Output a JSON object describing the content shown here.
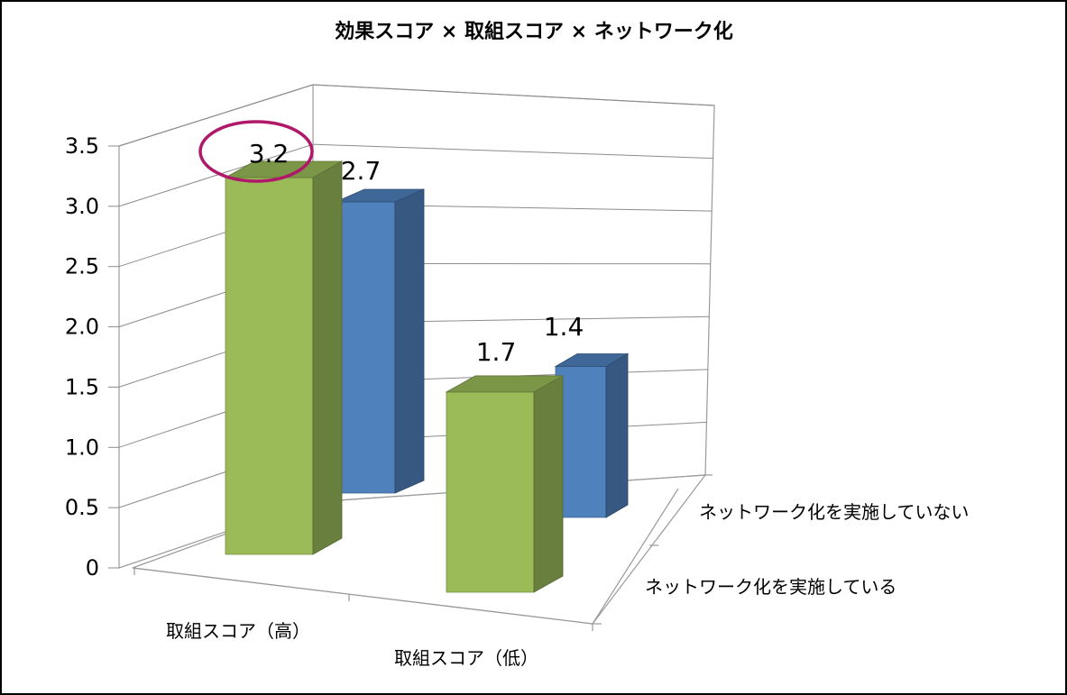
{
  "chart_data": {
    "type": "bar",
    "style": "3d-column",
    "title": "効果スコア × 取組スコア × ネットワーク化",
    "categories": [
      "取組スコア（高）",
      "取組スコア（低）"
    ],
    "series": [
      {
        "name": "ネットワーク化を実施している",
        "values": [
          3.2,
          1.7
        ],
        "color": "#9BBB59"
      },
      {
        "name": "ネットワーク化を実施していない",
        "values": [
          2.7,
          1.4
        ],
        "color": "#4F81BD"
      }
    ],
    "y_ticks": [
      "0",
      "0.5",
      "1.0",
      "1.5",
      "2.0",
      "2.5",
      "3.0",
      "3.5"
    ],
    "ylim": [
      0,
      3.5
    ],
    "grid": true,
    "highlight": {
      "series": 0,
      "category": 0,
      "shape": "ellipse",
      "color": "#B0186A"
    }
  }
}
